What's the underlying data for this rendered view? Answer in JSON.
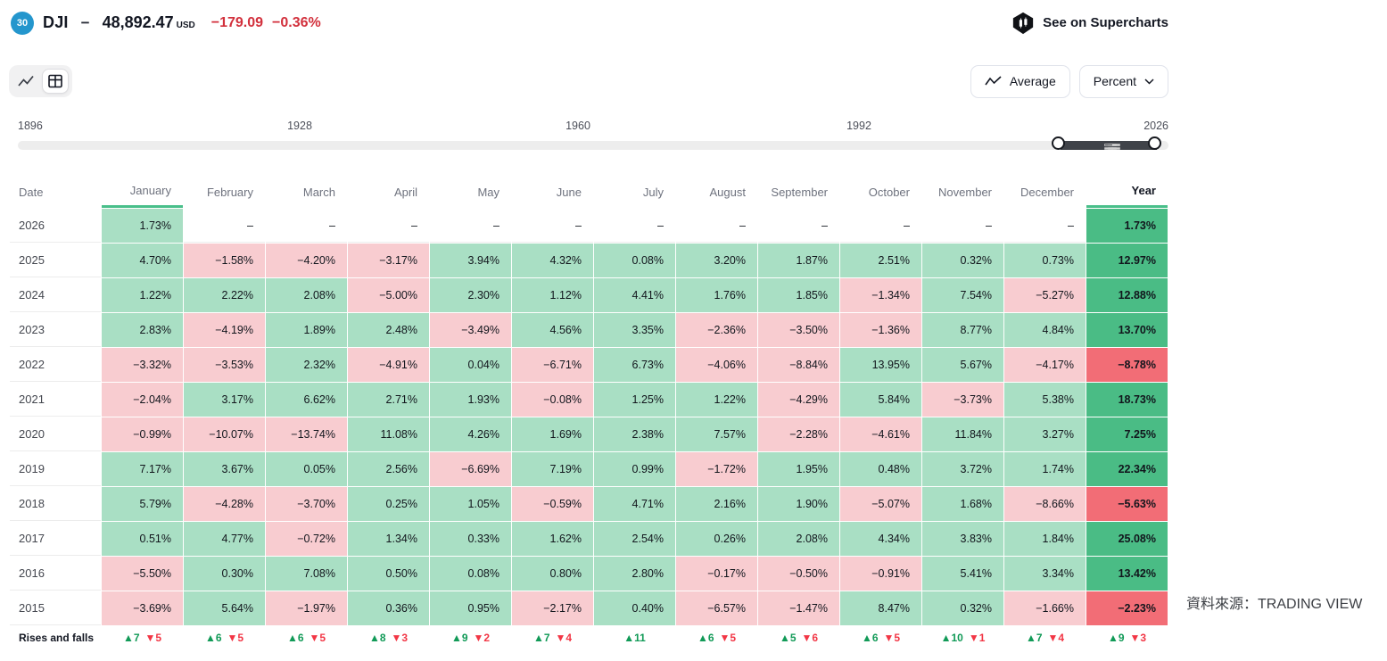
{
  "header": {
    "badge": "30",
    "symbol": "DJI",
    "separator": "−",
    "price": "48,892.47",
    "currency": "USD",
    "change": "−179.09",
    "change_percent": "−0.36%",
    "supercharts_label": "See on Supercharts"
  },
  "toolbar": {
    "average_label": "Average",
    "percent_label": "Percent"
  },
  "timeline": {
    "labels": [
      "1896",
      "1928",
      "1960",
      "1992",
      "2026"
    ]
  },
  "caption": "資料來源：TRADING VIEW",
  "table": {
    "columns": [
      "Date",
      "January",
      "February",
      "March",
      "April",
      "May",
      "June",
      "July",
      "August",
      "September",
      "October",
      "November",
      "December",
      "Year"
    ],
    "rows": [
      {
        "date": "2026",
        "months": [
          {
            "t": "1.73%",
            "s": "pos"
          },
          {
            "t": "–",
            "s": "none"
          },
          {
            "t": "–",
            "s": "none"
          },
          {
            "t": "–",
            "s": "none"
          },
          {
            "t": "–",
            "s": "none"
          },
          {
            "t": "–",
            "s": "none"
          },
          {
            "t": "–",
            "s": "none"
          },
          {
            "t": "–",
            "s": "none"
          },
          {
            "t": "–",
            "s": "none"
          },
          {
            "t": "–",
            "s": "none"
          },
          {
            "t": "–",
            "s": "none"
          },
          {
            "t": "–",
            "s": "none"
          }
        ],
        "year": {
          "t": "1.73%",
          "s": "pos-strong"
        }
      },
      {
        "date": "2025",
        "months": [
          {
            "t": "4.70%",
            "s": "pos"
          },
          {
            "t": "−1.58%",
            "s": "neg"
          },
          {
            "t": "−4.20%",
            "s": "neg"
          },
          {
            "t": "−3.17%",
            "s": "neg"
          },
          {
            "t": "3.94%",
            "s": "pos"
          },
          {
            "t": "4.32%",
            "s": "pos"
          },
          {
            "t": "0.08%",
            "s": "pos"
          },
          {
            "t": "3.20%",
            "s": "pos"
          },
          {
            "t": "1.87%",
            "s": "pos"
          },
          {
            "t": "2.51%",
            "s": "pos"
          },
          {
            "t": "0.32%",
            "s": "pos"
          },
          {
            "t": "0.73%",
            "s": "pos"
          }
        ],
        "year": {
          "t": "12.97%",
          "s": "pos-strong"
        }
      },
      {
        "date": "2024",
        "months": [
          {
            "t": "1.22%",
            "s": "pos"
          },
          {
            "t": "2.22%",
            "s": "pos"
          },
          {
            "t": "2.08%",
            "s": "pos"
          },
          {
            "t": "−5.00%",
            "s": "neg"
          },
          {
            "t": "2.30%",
            "s": "pos"
          },
          {
            "t": "1.12%",
            "s": "pos"
          },
          {
            "t": "4.41%",
            "s": "pos"
          },
          {
            "t": "1.76%",
            "s": "pos"
          },
          {
            "t": "1.85%",
            "s": "pos"
          },
          {
            "t": "−1.34%",
            "s": "neg"
          },
          {
            "t": "7.54%",
            "s": "pos"
          },
          {
            "t": "−5.27%",
            "s": "neg"
          }
        ],
        "year": {
          "t": "12.88%",
          "s": "pos-strong"
        }
      },
      {
        "date": "2023",
        "months": [
          {
            "t": "2.83%",
            "s": "pos"
          },
          {
            "t": "−4.19%",
            "s": "neg"
          },
          {
            "t": "1.89%",
            "s": "pos"
          },
          {
            "t": "2.48%",
            "s": "pos"
          },
          {
            "t": "−3.49%",
            "s": "neg"
          },
          {
            "t": "4.56%",
            "s": "pos"
          },
          {
            "t": "3.35%",
            "s": "pos"
          },
          {
            "t": "−2.36%",
            "s": "neg"
          },
          {
            "t": "−3.50%",
            "s": "neg"
          },
          {
            "t": "−1.36%",
            "s": "neg"
          },
          {
            "t": "8.77%",
            "s": "pos"
          },
          {
            "t": "4.84%",
            "s": "pos"
          }
        ],
        "year": {
          "t": "13.70%",
          "s": "pos-strong"
        }
      },
      {
        "date": "2022",
        "months": [
          {
            "t": "−3.32%",
            "s": "neg"
          },
          {
            "t": "−3.53%",
            "s": "neg"
          },
          {
            "t": "2.32%",
            "s": "pos"
          },
          {
            "t": "−4.91%",
            "s": "neg"
          },
          {
            "t": "0.04%",
            "s": "pos"
          },
          {
            "t": "−6.71%",
            "s": "neg"
          },
          {
            "t": "6.73%",
            "s": "pos"
          },
          {
            "t": "−4.06%",
            "s": "neg"
          },
          {
            "t": "−8.84%",
            "s": "neg"
          },
          {
            "t": "13.95%",
            "s": "pos"
          },
          {
            "t": "5.67%",
            "s": "pos"
          },
          {
            "t": "−4.17%",
            "s": "neg"
          }
        ],
        "year": {
          "t": "−8.78%",
          "s": "neg-strong"
        }
      },
      {
        "date": "2021",
        "months": [
          {
            "t": "−2.04%",
            "s": "neg"
          },
          {
            "t": "3.17%",
            "s": "pos"
          },
          {
            "t": "6.62%",
            "s": "pos"
          },
          {
            "t": "2.71%",
            "s": "pos"
          },
          {
            "t": "1.93%",
            "s": "pos"
          },
          {
            "t": "−0.08%",
            "s": "neg"
          },
          {
            "t": "1.25%",
            "s": "pos"
          },
          {
            "t": "1.22%",
            "s": "pos"
          },
          {
            "t": "−4.29%",
            "s": "neg"
          },
          {
            "t": "5.84%",
            "s": "pos"
          },
          {
            "t": "−3.73%",
            "s": "neg"
          },
          {
            "t": "5.38%",
            "s": "pos"
          }
        ],
        "year": {
          "t": "18.73%",
          "s": "pos-strong"
        }
      },
      {
        "date": "2020",
        "months": [
          {
            "t": "−0.99%",
            "s": "neg"
          },
          {
            "t": "−10.07%",
            "s": "neg"
          },
          {
            "t": "−13.74%",
            "s": "neg"
          },
          {
            "t": "11.08%",
            "s": "pos"
          },
          {
            "t": "4.26%",
            "s": "pos"
          },
          {
            "t": "1.69%",
            "s": "pos"
          },
          {
            "t": "2.38%",
            "s": "pos"
          },
          {
            "t": "7.57%",
            "s": "pos"
          },
          {
            "t": "−2.28%",
            "s": "neg"
          },
          {
            "t": "−4.61%",
            "s": "neg"
          },
          {
            "t": "11.84%",
            "s": "pos"
          },
          {
            "t": "3.27%",
            "s": "pos"
          }
        ],
        "year": {
          "t": "7.25%",
          "s": "pos-strong"
        }
      },
      {
        "date": "2019",
        "months": [
          {
            "t": "7.17%",
            "s": "pos"
          },
          {
            "t": "3.67%",
            "s": "pos"
          },
          {
            "t": "0.05%",
            "s": "pos"
          },
          {
            "t": "2.56%",
            "s": "pos"
          },
          {
            "t": "−6.69%",
            "s": "neg"
          },
          {
            "t": "7.19%",
            "s": "pos"
          },
          {
            "t": "0.99%",
            "s": "pos"
          },
          {
            "t": "−1.72%",
            "s": "neg"
          },
          {
            "t": "1.95%",
            "s": "pos"
          },
          {
            "t": "0.48%",
            "s": "pos"
          },
          {
            "t": "3.72%",
            "s": "pos"
          },
          {
            "t": "1.74%",
            "s": "pos"
          }
        ],
        "year": {
          "t": "22.34%",
          "s": "pos-strong"
        }
      },
      {
        "date": "2018",
        "months": [
          {
            "t": "5.79%",
            "s": "pos"
          },
          {
            "t": "−4.28%",
            "s": "neg"
          },
          {
            "t": "−3.70%",
            "s": "neg"
          },
          {
            "t": "0.25%",
            "s": "pos"
          },
          {
            "t": "1.05%",
            "s": "pos"
          },
          {
            "t": "−0.59%",
            "s": "neg"
          },
          {
            "t": "4.71%",
            "s": "pos"
          },
          {
            "t": "2.16%",
            "s": "pos"
          },
          {
            "t": "1.90%",
            "s": "pos"
          },
          {
            "t": "−5.07%",
            "s": "neg"
          },
          {
            "t": "1.68%",
            "s": "pos"
          },
          {
            "t": "−8.66%",
            "s": "neg"
          }
        ],
        "year": {
          "t": "−5.63%",
          "s": "neg-strong"
        }
      },
      {
        "date": "2017",
        "months": [
          {
            "t": "0.51%",
            "s": "pos"
          },
          {
            "t": "4.77%",
            "s": "pos"
          },
          {
            "t": "−0.72%",
            "s": "neg"
          },
          {
            "t": "1.34%",
            "s": "pos"
          },
          {
            "t": "0.33%",
            "s": "pos"
          },
          {
            "t": "1.62%",
            "s": "pos"
          },
          {
            "t": "2.54%",
            "s": "pos"
          },
          {
            "t": "0.26%",
            "s": "pos"
          },
          {
            "t": "2.08%",
            "s": "pos"
          },
          {
            "t": "4.34%",
            "s": "pos"
          },
          {
            "t": "3.83%",
            "s": "pos"
          },
          {
            "t": "1.84%",
            "s": "pos"
          }
        ],
        "year": {
          "t": "25.08%",
          "s": "pos-strong"
        }
      },
      {
        "date": "2016",
        "months": [
          {
            "t": "−5.50%",
            "s": "neg"
          },
          {
            "t": "0.30%",
            "s": "pos"
          },
          {
            "t": "7.08%",
            "s": "pos"
          },
          {
            "t": "0.50%",
            "s": "pos"
          },
          {
            "t": "0.08%",
            "s": "pos"
          },
          {
            "t": "0.80%",
            "s": "pos"
          },
          {
            "t": "2.80%",
            "s": "pos"
          },
          {
            "t": "−0.17%",
            "s": "neg"
          },
          {
            "t": "−0.50%",
            "s": "neg"
          },
          {
            "t": "−0.91%",
            "s": "neg"
          },
          {
            "t": "5.41%",
            "s": "pos"
          },
          {
            "t": "3.34%",
            "s": "pos"
          }
        ],
        "year": {
          "t": "13.42%",
          "s": "pos-strong"
        }
      },
      {
        "date": "2015",
        "months": [
          {
            "t": "−3.69%",
            "s": "neg"
          },
          {
            "t": "5.64%",
            "s": "pos"
          },
          {
            "t": "−1.97%",
            "s": "neg"
          },
          {
            "t": "0.36%",
            "s": "pos"
          },
          {
            "t": "0.95%",
            "s": "pos"
          },
          {
            "t": "−2.17%",
            "s": "neg"
          },
          {
            "t": "0.40%",
            "s": "pos"
          },
          {
            "t": "−6.57%",
            "s": "neg"
          },
          {
            "t": "−1.47%",
            "s": "neg"
          },
          {
            "t": "8.47%",
            "s": "pos"
          },
          {
            "t": "0.32%",
            "s": "pos"
          },
          {
            "t": "−1.66%",
            "s": "neg"
          }
        ],
        "year": {
          "t": "−2.23%",
          "s": "neg-strong"
        }
      }
    ],
    "rises_falls": {
      "label": "Rises and falls",
      "months": [
        {
          "up": "7",
          "down": "5"
        },
        {
          "up": "6",
          "down": "5"
        },
        {
          "up": "6",
          "down": "5"
        },
        {
          "up": "8",
          "down": "3"
        },
        {
          "up": "9",
          "down": "2"
        },
        {
          "up": "7",
          "down": "4"
        },
        {
          "up": "11",
          "down": null
        },
        {
          "up": "6",
          "down": "5"
        },
        {
          "up": "5",
          "down": "6"
        },
        {
          "up": "6",
          "down": "5"
        },
        {
          "up": "10",
          "down": "1"
        },
        {
          "up": "7",
          "down": "4"
        }
      ],
      "year": {
        "up": "9",
        "down": "3"
      }
    }
  }
}
